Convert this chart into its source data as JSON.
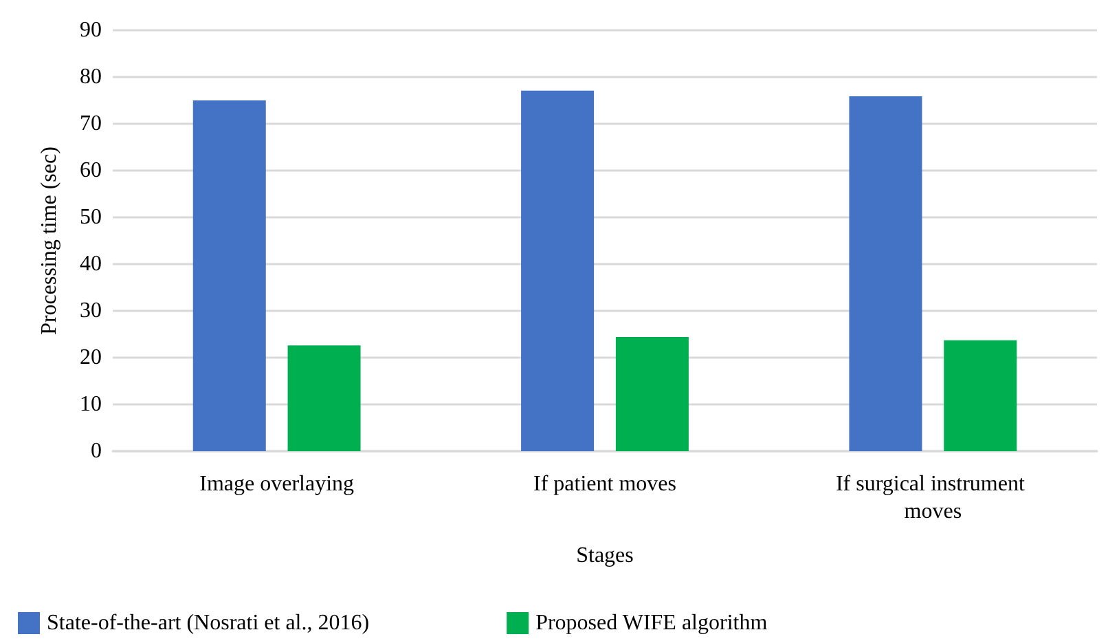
{
  "chart_data": {
    "type": "bar",
    "xlabel": "Stages",
    "ylabel": "Processing time (sec)",
    "categories": [
      "Image overlaying",
      "If patient moves",
      "If surgical instrument moves"
    ],
    "series": [
      {
        "name": "State-of-the-art (Nosrati et al., 2016)",
        "color": "#4472c4",
        "values": [
          75,
          77.1,
          75.9
        ]
      },
      {
        "name": "Proposed WIFE algorithm",
        "color": "#00b050",
        "values": [
          22.6,
          24.4,
          23.7
        ]
      }
    ],
    "ylim": [
      0,
      90
    ],
    "yticks": [
      0,
      10,
      20,
      30,
      40,
      50,
      60,
      70,
      80,
      90
    ],
    "grid": "y",
    "legend": "bottom left"
  }
}
